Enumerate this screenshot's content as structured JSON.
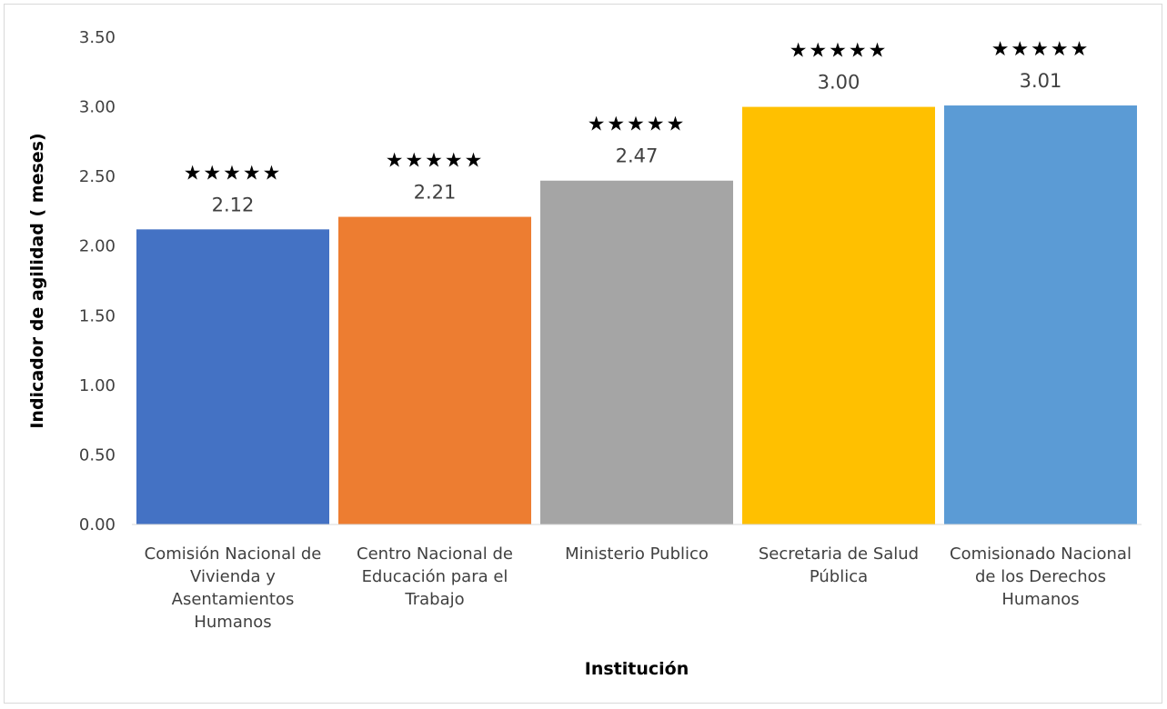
{
  "chart_data": {
    "type": "bar",
    "title": "",
    "xlabel": "Institución",
    "ylabel": "Indicador de agilidad ( meses)",
    "ylim": [
      0,
      3.5
    ],
    "yticks": [
      "0.00",
      "0.50",
      "1.00",
      "1.50",
      "2.00",
      "2.50",
      "3.00",
      "3.50"
    ],
    "ytick_values": [
      0,
      0.5,
      1,
      1.5,
      2,
      2.5,
      3,
      3.5
    ],
    "grid": false,
    "legend": "none",
    "categories": [
      [
        "Comisión Nacional de",
        "Vivienda y",
        "Asentamientos",
        "Humanos"
      ],
      [
        "Centro Nacional de",
        "Educación para el",
        "Trabajo"
      ],
      [
        "Ministerio Publico"
      ],
      [
        "Secretaria de Salud",
        "Pública"
      ],
      [
        "Comisionado Nacional",
        "de los Derechos",
        "Humanos"
      ]
    ],
    "values": [
      2.12,
      2.21,
      2.47,
      3.0,
      3.01
    ],
    "data_labels": [
      "2.12",
      "2.21",
      "2.47",
      "3.00",
      "3.01"
    ],
    "annotations": [
      "★★★★★",
      "★★★★★",
      "★★★★★",
      "★★★★★",
      "★★★★★"
    ],
    "colors": [
      "#4472c4",
      "#ed7d31",
      "#a5a5a5",
      "#ffc000",
      "#5b9bd5"
    ]
  }
}
